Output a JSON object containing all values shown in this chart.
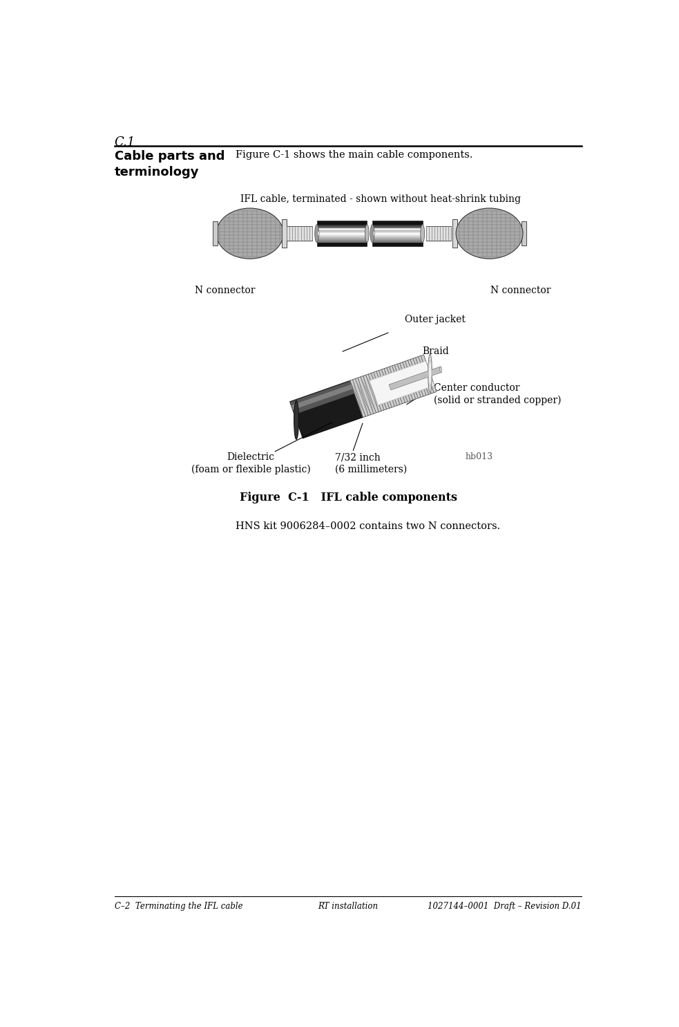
{
  "page_width": 9.83,
  "page_height": 14.85,
  "bg_color": "#ffffff",
  "section_number": "C.1",
  "left_heading": "Cable parts and\nterminology",
  "right_intro": "Figure C-1 shows the main cable components.",
  "cable_label": "IFL cable, terminated - shown without heat-shrink tubing",
  "n_connector_left": "N connector",
  "n_connector_right": "N connector",
  "figure_caption": "Figure  C-1   IFL cable components",
  "hns_text": "HNS kit 9006284–0002 contains two N connectors.",
  "outer_jacket_label": "Outer jacket",
  "braid_label": "Braid",
  "center_conductor_label": "Center conductor\n(solid or stranded copper)",
  "dielectric_label": "Dielectric\n(foam or flexible plastic)",
  "dimension_label": "7/32 inch\n(6 millimeters)",
  "hb013_label": "hb013",
  "footer_left": "C–2  Terminating the IFL cable",
  "footer_center": "RT installation",
  "footer_right": "1027144–0001  Draft – Revision D.01"
}
